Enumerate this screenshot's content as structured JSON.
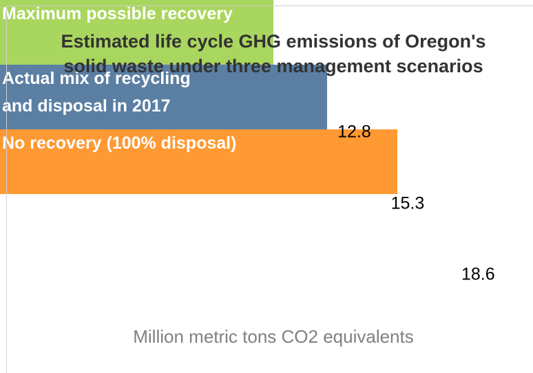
{
  "chart_data": {
    "type": "bar",
    "orientation": "horizontal",
    "title": "Estimated life cycle GHG emissions of Oregon's\nsolid waste under three management scenarios",
    "categories": [
      "Maximum possible recovery",
      "Actual mix of recycling\nand disposal in 2017",
      "No recovery (100% disposal)"
    ],
    "values": [
      12.8,
      15.3,
      18.6
    ],
    "colors": [
      "#a9d65e",
      "#5b7fa3",
      "#ff9933"
    ],
    "border_colors": [
      "#8cc63f",
      "#3b5e84",
      "#f07d10"
    ],
    "xlabel": "Million metric tons CO2 equivalents"
  }
}
